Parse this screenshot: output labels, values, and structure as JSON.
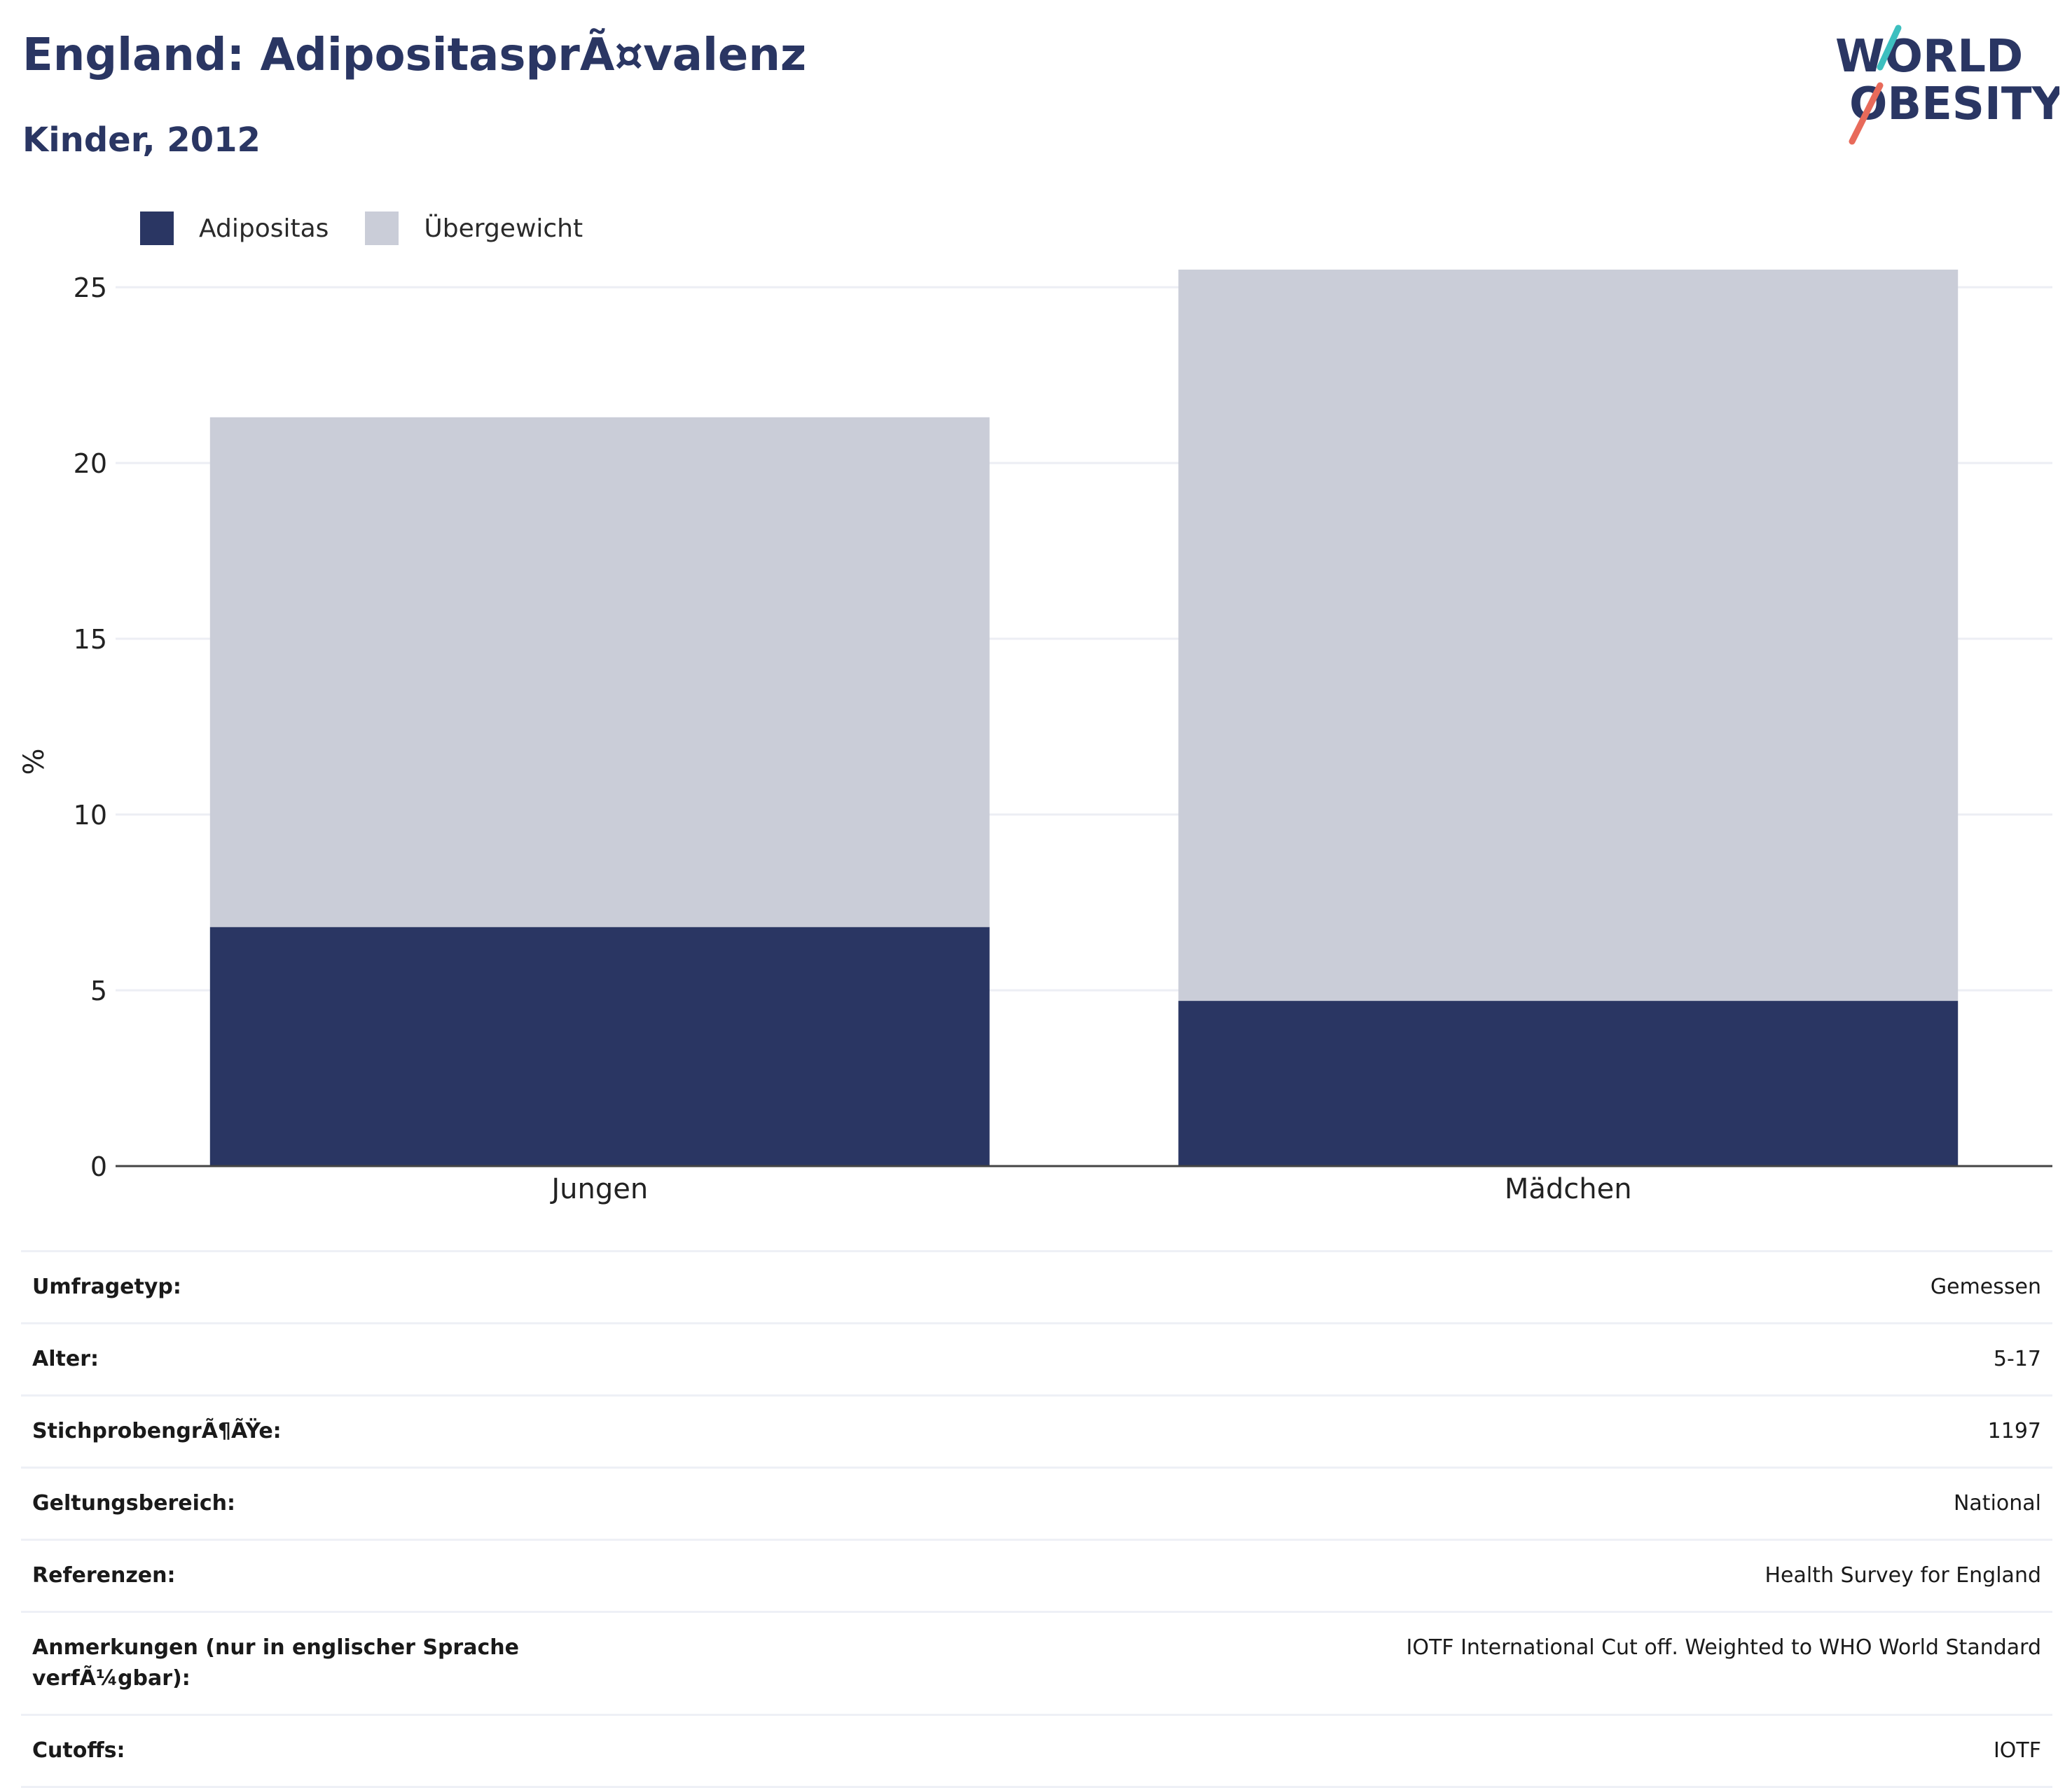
{
  "title": "England: AdipositasprÃ¤valenz",
  "subtitle": "Kinder, 2012",
  "logo": {
    "line1": "WORLD",
    "line2": "OBESITY"
  },
  "legend": [
    {
      "label": "Adipositas",
      "color": "#2a3663"
    },
    {
      "label": "Übergewicht",
      "color": "#cacdd8"
    }
  ],
  "chart_data": {
    "type": "bar",
    "stacked": true,
    "categories": [
      "Jungen",
      "Mädchen"
    ],
    "series": [
      {
        "name": "Adipositas",
        "color": "#2a3663",
        "values": [
          6.8,
          4.7
        ]
      },
      {
        "name": "Übergewicht",
        "color": "#cacdd8",
        "values": [
          14.5,
          20.8
        ]
      }
    ],
    "ylabel": "%",
    "xlabel": "",
    "ylim": [
      0,
      25
    ],
    "yticks": [
      0,
      5,
      10,
      15,
      20,
      25
    ],
    "grid": true,
    "legend_position": "top-left"
  },
  "info": [
    {
      "key": "Umfragetyp:",
      "value": "Gemessen"
    },
    {
      "key": "Alter:",
      "value": "5-17"
    },
    {
      "key": "StichprobengrÃ¶ÃŸe:",
      "value": "1197"
    },
    {
      "key": "Geltungsbereich:",
      "value": "National"
    },
    {
      "key": "Referenzen:",
      "value": "Health Survey for England"
    },
    {
      "key": "Anmerkungen (nur in englischer Sprache verfÃ¼gbar):",
      "value": "IOTF International Cut off. Weighted to WHO World Standard"
    },
    {
      "key": "Cutoffs:",
      "value": "IOTF"
    }
  ]
}
